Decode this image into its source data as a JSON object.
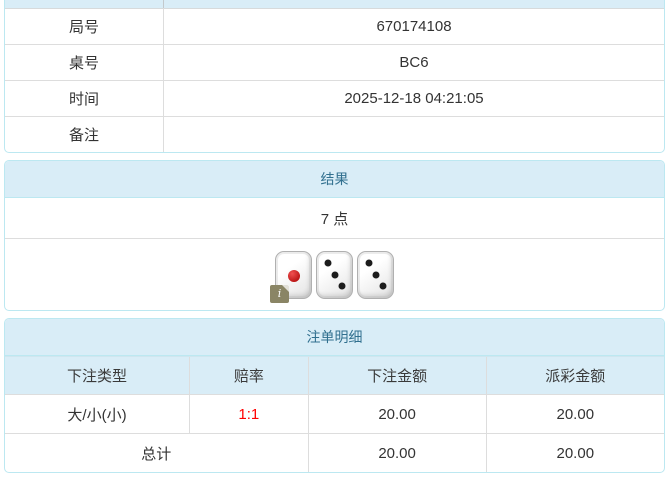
{
  "colors": {
    "panel_border": "#bce8f1",
    "heading_bg": "#d9edf7",
    "heading_text": "#31708f",
    "cell_border": "#dddddd",
    "text": "#333333",
    "odds_red": "#ff0000"
  },
  "info_table": {
    "rows": [
      {
        "label": "局号",
        "value": "670174108"
      },
      {
        "label": "桌号",
        "value": "BC6"
      },
      {
        "label": "时间",
        "value": "2025-12-18 04:21:05"
      },
      {
        "label": "备注",
        "value": ""
      }
    ]
  },
  "result_panel": {
    "title": "结果",
    "points": "7 点",
    "dice": [
      1,
      3,
      3
    ],
    "info_badge": "i"
  },
  "bets_panel": {
    "title": "注单明细",
    "columns": [
      "下注类型",
      "赔率",
      "下注金额",
      "派彩金额"
    ],
    "rows": [
      {
        "bet_type": "大/小(小)",
        "odds": "1:1",
        "bet_amount": "20.00",
        "payout": "20.00"
      }
    ],
    "total": {
      "label": "总计",
      "bet_amount": "20.00",
      "payout": "20.00"
    }
  }
}
